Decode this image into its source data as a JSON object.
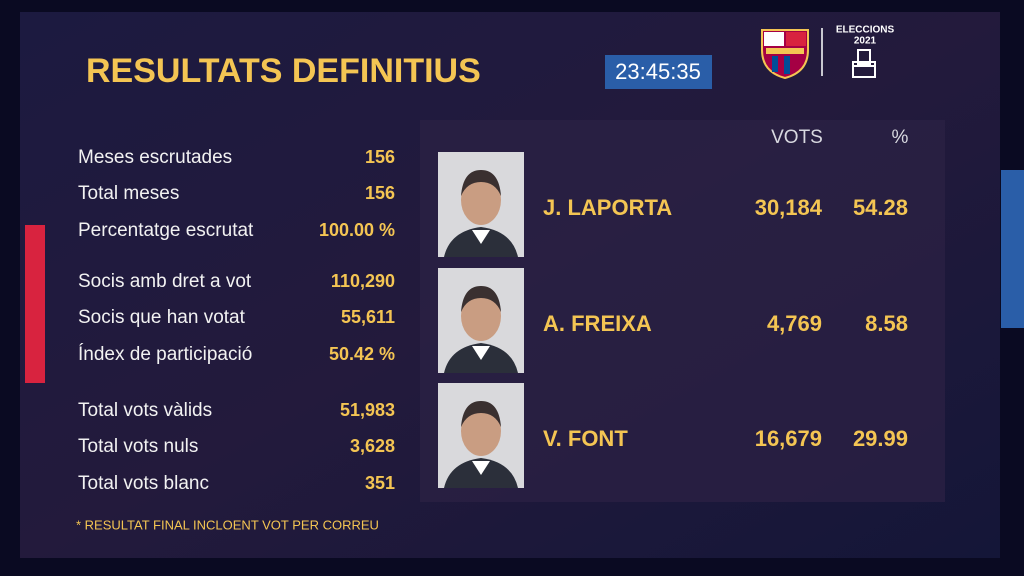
{
  "header": {
    "title": "RESULTATS DEFINITIUS",
    "time": "23:45:35",
    "logo": {
      "line1": "ELECCIONS",
      "line2": "2021"
    }
  },
  "stats": {
    "groups": [
      [
        {
          "label": "Meses escrutades",
          "value": "156"
        },
        {
          "label": "Total meses",
          "value": "156"
        },
        {
          "label": "Percentatge escrutat",
          "value": "100.00 %"
        }
      ],
      [
        {
          "label": "Socis amb dret a vot",
          "value": "110,290"
        },
        {
          "label": "Socis que han votat",
          "value": "55,611"
        },
        {
          "label": "Índex de participació",
          "value": "50.42 %"
        }
      ],
      [
        {
          "label": "Total vots vàlids",
          "value": "51,983"
        },
        {
          "label": "Total vots nuls",
          "value": "3,628"
        },
        {
          "label": "Total vots blanc",
          "value": "351"
        }
      ]
    ]
  },
  "results": {
    "columns": [
      "VOTS",
      "%"
    ],
    "candidates": [
      {
        "name": "J. LAPORTA",
        "votes": "30,184",
        "percent": "54.28"
      },
      {
        "name": "A. FREIXA",
        "votes": "4,769",
        "percent": "8.58"
      },
      {
        "name": "V. FONT",
        "votes": "16,679",
        "percent": "29.99"
      }
    ]
  },
  "footnote": "* RESULTAT FINAL INCLOENT VOT PER CORREU"
}
